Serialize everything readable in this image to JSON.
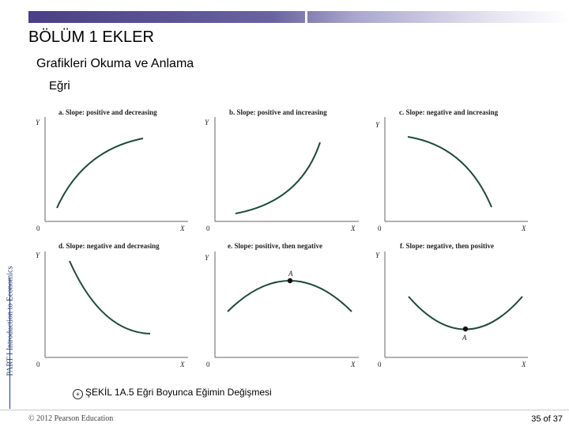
{
  "header": {
    "title": "BÖLÜM 1 EKLER",
    "subtitle": "Grafikleri Okuma ve Anlama",
    "bullet": "Eğri"
  },
  "side_label": "PART I Introduction to Economics",
  "panels": [
    {
      "title": "a. Slope: positive and decreasing",
      "y_axis": "Y",
      "x_axis": "X",
      "origin": "0"
    },
    {
      "title": "b. Slope: positive and increasing",
      "y_axis": "Y",
      "x_axis": "X",
      "origin": "0"
    },
    {
      "title": "c. Slope: negative and increasing",
      "y_axis": "Y",
      "x_axis": "X",
      "origin": "0"
    },
    {
      "title": "d. Slope: negative and decreasing",
      "y_axis": "Y",
      "x_axis": "X",
      "origin": "0"
    },
    {
      "title": "e. Slope: positive, then negative",
      "y_axis": "Y",
      "x_axis": "X",
      "origin": "0",
      "point_label": "A"
    },
    {
      "title": "f. Slope: negative, then positive",
      "y_axis": "Y",
      "x_axis": "X",
      "origin": "0",
      "point_label": "A"
    }
  ],
  "caption": {
    "icon": "circled-plus-icon",
    "text": "ŞEKİL 1A.5  Eğri Boyunca Eğimin Değişmesi"
  },
  "footer": {
    "copyright": "© 2012 Pearson Education",
    "page": "35 of 37"
  },
  "colors": {
    "curve": "#1f4a3a",
    "accent_bar": "#4a3f86",
    "side_text": "#243a7a"
  }
}
